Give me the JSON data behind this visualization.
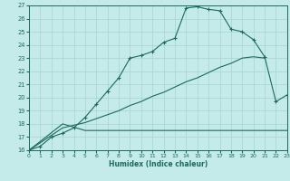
{
  "xlabel": "Humidex (Indice chaleur)",
  "bg_color": "#c5eaea",
  "line_color": "#1a6b5a",
  "grid_color": "#a8d4d4",
  "xlim": [
    0,
    23
  ],
  "ylim": [
    16,
    27
  ],
  "xticks": [
    0,
    1,
    2,
    3,
    4,
    5,
    6,
    7,
    8,
    9,
    10,
    11,
    12,
    13,
    14,
    15,
    16,
    17,
    18,
    19,
    20,
    21,
    22,
    23
  ],
  "yticks": [
    16,
    17,
    18,
    19,
    20,
    21,
    22,
    23,
    24,
    25,
    26,
    27
  ],
  "line1_x": [
    0,
    1,
    2,
    3,
    4,
    5,
    6,
    7,
    8,
    9,
    10,
    11,
    12,
    13,
    14,
    15,
    16,
    17,
    18,
    19,
    20,
    21,
    22,
    23
  ],
  "line1_y": [
    16.0,
    16.3,
    17.0,
    17.3,
    17.7,
    18.5,
    19.5,
    20.5,
    21.5,
    23.0,
    23.2,
    23.5,
    24.2,
    24.5,
    26.8,
    26.9,
    26.7,
    26.6,
    25.2,
    25.0,
    24.4,
    23.1,
    19.7,
    20.2
  ],
  "line2_x": [
    0,
    3,
    4,
    5,
    6,
    7,
    8,
    9,
    10,
    11,
    12,
    13,
    14,
    15,
    16,
    17,
    18,
    19,
    20,
    21
  ],
  "line2_y": [
    16.0,
    17.7,
    17.9,
    18.1,
    18.4,
    18.7,
    19.0,
    19.4,
    19.7,
    20.1,
    20.4,
    20.8,
    21.2,
    21.5,
    21.9,
    22.3,
    22.6,
    23.0,
    23.1,
    23.0
  ],
  "line3_x": [
    0,
    3,
    5,
    20,
    22,
    23
  ],
  "line3_y": [
    16.0,
    18.0,
    17.5,
    17.5,
    17.5,
    17.5
  ],
  "marker": "+"
}
